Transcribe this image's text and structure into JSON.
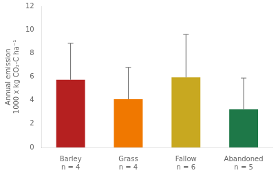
{
  "chart_data": {
    "type": "bar",
    "categories": [
      "Barley\nn = 4",
      "Grass\nn = 4",
      "Fallow\nn = 6",
      "Abandoned\nn = 5"
    ],
    "values": [
      5.75,
      4.1,
      5.95,
      3.25
    ],
    "errors_upper": [
      3.1,
      2.7,
      3.65,
      2.65
    ],
    "colors": [
      "#b52020",
      "#f07800",
      "#c8a820",
      "#1e7848"
    ],
    "ylabel": "Annual emission\n1000 x kg CO₂-C ha⁻¹",
    "ylim": [
      0,
      12
    ],
    "yticks": [
      0,
      2,
      4,
      6,
      8,
      10,
      12
    ],
    "grid": false
  }
}
